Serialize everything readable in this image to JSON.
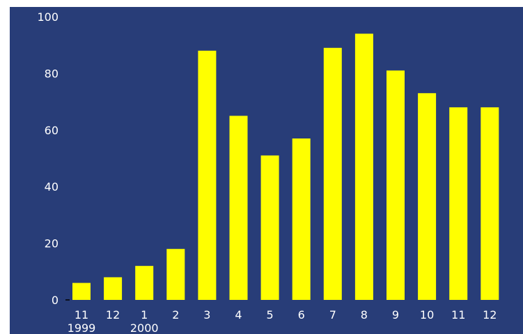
{
  "colors": {
    "background": "#283d78",
    "bar": "#ffff00",
    "text": "#ffffff"
  },
  "chart_data": {
    "type": "bar",
    "title": "",
    "xlabel": "",
    "ylabel": "",
    "categories": [
      "11",
      "12",
      "1",
      "2",
      "3",
      "4",
      "5",
      "6",
      "7",
      "8",
      "9",
      "10",
      "11",
      "12"
    ],
    "year_labels": [
      {
        "category_index": 0,
        "label": "1999"
      },
      {
        "category_index": 2,
        "label": "2000"
      }
    ],
    "series": [
      {
        "values": [
          6,
          8,
          12,
          18,
          88,
          65,
          51,
          57,
          89,
          94,
          81,
          73,
          68,
          68
        ]
      }
    ],
    "ylim": [
      0,
      100
    ],
    "yticks": [
      0,
      20,
      40,
      60,
      80,
      100
    ],
    "grid": false,
    "legend": "none"
  }
}
